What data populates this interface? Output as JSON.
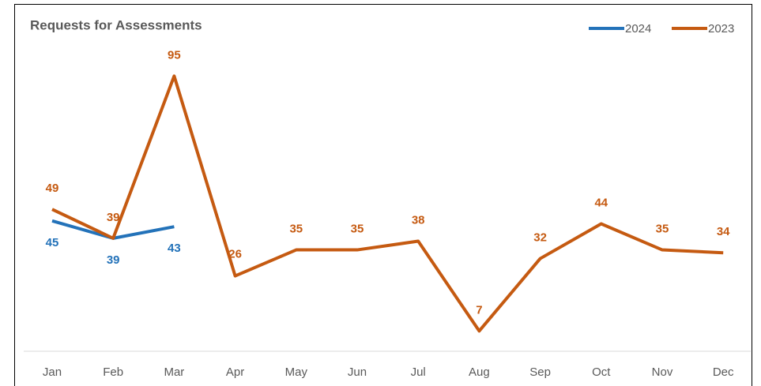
{
  "chart_data": {
    "type": "line",
    "title": "Requests for Assessments",
    "categories": [
      "Jan",
      "Feb",
      "Mar",
      "Apr",
      "May",
      "Jun",
      "Jul",
      "Aug",
      "Sep",
      "Oct",
      "Nov",
      "Dec"
    ],
    "series": [
      {
        "name": "2024",
        "color": "#2372b9",
        "values": [
          45,
          39,
          43,
          null,
          null,
          null,
          null,
          null,
          null,
          null,
          null,
          null
        ]
      },
      {
        "name": "2023",
        "color": "#c55a11",
        "values": [
          49,
          39,
          95,
          26,
          35,
          35,
          38,
          7,
          32,
          44,
          35,
          34
        ]
      }
    ],
    "ylim": [
      0,
      100
    ],
    "grid": false,
    "legend": "top-right"
  }
}
